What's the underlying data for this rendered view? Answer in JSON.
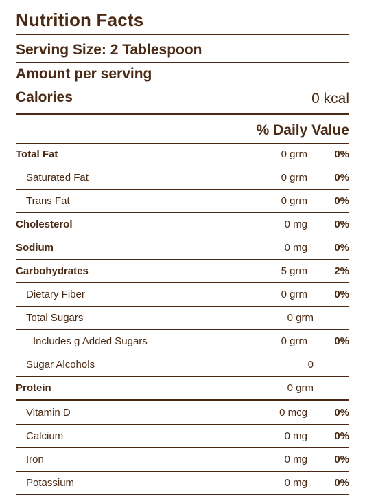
{
  "title": "Nutrition Facts",
  "serving_size": "Serving Size: 2 Tablespoon",
  "amount_per_serving": "Amount per serving",
  "calories": {
    "label": "Calories",
    "value": "0 kcal"
  },
  "daily_value_header": "% Daily Value",
  "nutrients": [
    {
      "name": "Total Fat",
      "amount": "0 grm",
      "dv": "0%"
    },
    {
      "name": "Saturated Fat",
      "amount": "0 grm",
      "dv": "0%"
    },
    {
      "name": "Trans Fat",
      "amount": "0 grm",
      "dv": "0%"
    },
    {
      "name": "Cholesterol",
      "amount": "0 mg",
      "dv": "0%"
    },
    {
      "name": "Sodium",
      "amount": "0 mg",
      "dv": "0%"
    },
    {
      "name": "Carbohydrates",
      "amount": "5 grm",
      "dv": "2%"
    },
    {
      "name": "Dietary Fiber",
      "amount": "0 grm",
      "dv": "0%"
    },
    {
      "name": "Total Sugars",
      "amount": "0 grm",
      "dv": ""
    },
    {
      "name": "Includes g Added Sugars",
      "amount": "0 grm",
      "dv": "0%"
    },
    {
      "name": "Sugar Alcohols",
      "amount": "0",
      "dv": ""
    },
    {
      "name": "Protein",
      "amount": "0 grm",
      "dv": ""
    },
    {
      "name": "Vitamin D",
      "amount": "0 mcg",
      "dv": "0%"
    },
    {
      "name": "Calcium",
      "amount": "0 mg",
      "dv": "0%"
    },
    {
      "name": "Iron",
      "amount": "0 mg",
      "dv": "0%"
    },
    {
      "name": "Potassium",
      "amount": "0 mg",
      "dv": "0%"
    }
  ]
}
